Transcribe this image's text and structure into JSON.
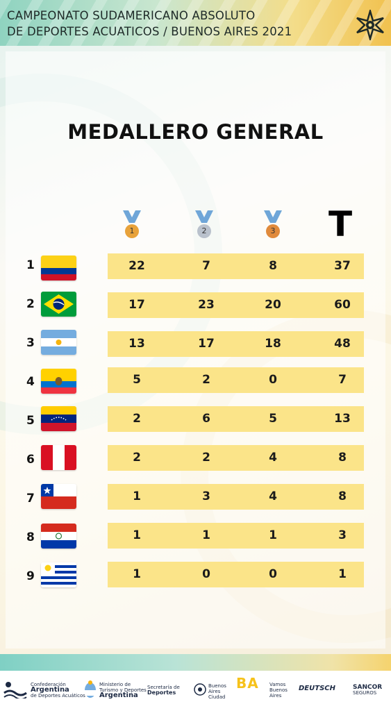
{
  "header": {
    "line1": "CAMPEONATO SUDAMERICANO ABSOLUTO",
    "line2": "DE DEPORTES ACUATICOS / BUENOS AIRES 2021",
    "logo_icon": "star-logo-icon"
  },
  "title": "MEDALLERO GENERAL",
  "columns": {
    "gold": {
      "icon": "gold-medal-icon",
      "number": "1",
      "color": "#e8a23a"
    },
    "silver": {
      "icon": "silver-medal-icon",
      "number": "2",
      "color": "#b9c1cc"
    },
    "bronze": {
      "icon": "bronze-medal-icon",
      "number": "3",
      "color": "#e08a3c"
    },
    "total": "T"
  },
  "rows": [
    {
      "rank": "1",
      "flag": "colombia-flag-icon",
      "gold": "22",
      "silver": "7",
      "bronze": "8",
      "total": "37"
    },
    {
      "rank": "2",
      "flag": "brazil-flag-icon",
      "gold": "17",
      "silver": "23",
      "bronze": "20",
      "total": "60"
    },
    {
      "rank": "3",
      "flag": "argentina-flag-icon",
      "gold": "13",
      "silver": "17",
      "bronze": "18",
      "total": "48"
    },
    {
      "rank": "4",
      "flag": "ecuador-flag-icon",
      "gold": "5",
      "silver": "2",
      "bronze": "0",
      "total": "7"
    },
    {
      "rank": "5",
      "flag": "venezuela-flag-icon",
      "gold": "2",
      "silver": "6",
      "bronze": "5",
      "total": "13"
    },
    {
      "rank": "6",
      "flag": "peru-flag-icon",
      "gold": "2",
      "silver": "2",
      "bronze": "4",
      "total": "8"
    },
    {
      "rank": "7",
      "flag": "chile-flag-icon",
      "gold": "1",
      "silver": "3",
      "bronze": "4",
      "total": "8"
    },
    {
      "rank": "8",
      "flag": "paraguay-flag-icon",
      "gold": "1",
      "silver": "1",
      "bronze": "1",
      "total": "3"
    },
    {
      "rank": "9",
      "flag": "uruguay-flag-icon",
      "gold": "1",
      "silver": "0",
      "bronze": "0",
      "total": "1"
    }
  ],
  "colors": {
    "row_bar": "#fbe489",
    "text": "#1b1b1b"
  },
  "sponsors": [
    {
      "name": "Argentina",
      "sub": "Confederación",
      "sub2": "de Deportes Acuáticos"
    },
    {
      "name": "Argentina",
      "sub": "Ministerio de",
      "sub2": "Turismo y Deportes"
    },
    {
      "name": "Deportes",
      "sub": "Secretaría de"
    },
    {
      "name": "Buenos Aires Ciudad",
      "sub": ""
    },
    {
      "name": "BA",
      "sub": "Vamos Buenos Aires"
    },
    {
      "name": "DEUTSCH",
      "sub": ""
    },
    {
      "name": "SANCOR",
      "sub": "SEGUROS"
    }
  ]
}
